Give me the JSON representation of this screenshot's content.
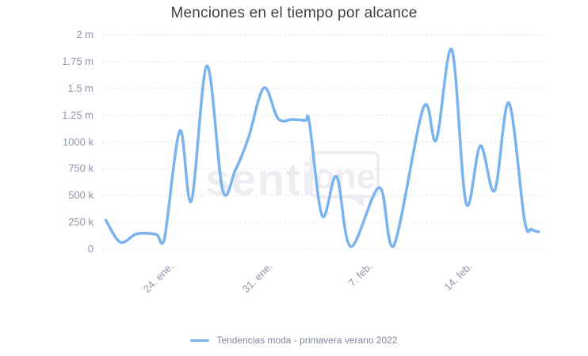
{
  "title": "Menciones en el tiempo por alcance",
  "watermark": {
    "text_left": "senti",
    "text_right": "one"
  },
  "colors": {
    "series_line": "#7ab3ee",
    "title_text": "#3f3f3f",
    "axis_label_text": "#8f95a8",
    "legend_text": "#7f8699",
    "gridline": "#d7d7d7",
    "watermark": "#eeeef2",
    "background": "#ffffff"
  },
  "chart_data": {
    "type": "line",
    "interpolation": "spline",
    "title": "Menciones en el tiempo por alcance",
    "grid": "horizontal-dotted",
    "legend_position": "bottom-center",
    "x_axis": {
      "range_days": [
        0,
        31
      ],
      "ticks": [
        {
          "label": "24. ene.",
          "day": 4.6
        },
        {
          "label": "31. ene.",
          "day": 11.6
        },
        {
          "label": "7. feb.",
          "day": 18.6
        },
        {
          "label": "14. feb.",
          "day": 25.6
        }
      ]
    },
    "y_axis": {
      "unit": "k",
      "range_k": [
        0,
        2000
      ],
      "ticks": [
        {
          "label": "0",
          "value_k": 0
        },
        {
          "label": "250 k",
          "value_k": 250
        },
        {
          "label": "500 k",
          "value_k": 500
        },
        {
          "label": "750 k",
          "value_k": 750
        },
        {
          "label": "1000 k",
          "value_k": 1000
        },
        {
          "label": "1.25 m",
          "value_k": 1250
        },
        {
          "label": "1.5 m",
          "value_k": 1500
        },
        {
          "label": "1.75 m",
          "value_k": 1750
        },
        {
          "label": "2 m",
          "value_k": 2000
        }
      ]
    },
    "series": [
      {
        "name": "Tendencias moda - primavera verano 2022",
        "color": "#7ab3ee",
        "points_day_valuek": [
          [
            0.2,
            270
          ],
          [
            1.2,
            66
          ],
          [
            2.3,
            140
          ],
          [
            3.1,
            148
          ],
          [
            3.8,
            133
          ],
          [
            4.3,
            88
          ],
          [
            5.4,
            1105
          ],
          [
            6.2,
            450
          ],
          [
            7.3,
            1710
          ],
          [
            8.4,
            553
          ],
          [
            9.3,
            740
          ],
          [
            10.2,
            1035
          ],
          [
            11.3,
            1505
          ],
          [
            12.3,
            1218
          ],
          [
            13.3,
            1210
          ],
          [
            14.2,
            1200
          ],
          [
            14.5,
            1173
          ],
          [
            15.4,
            310
          ],
          [
            16.4,
            678
          ],
          [
            17.4,
            25
          ],
          [
            19.4,
            576
          ],
          [
            20.4,
            25
          ],
          [
            22.5,
            1320
          ],
          [
            23.4,
            1018
          ],
          [
            24.5,
            1860
          ],
          [
            25.5,
            428
          ],
          [
            26.5,
            965
          ],
          [
            27.5,
            546
          ],
          [
            28.5,
            1365
          ],
          [
            29.6,
            275
          ],
          [
            30.1,
            185
          ],
          [
            30.6,
            162
          ]
        ]
      }
    ]
  }
}
